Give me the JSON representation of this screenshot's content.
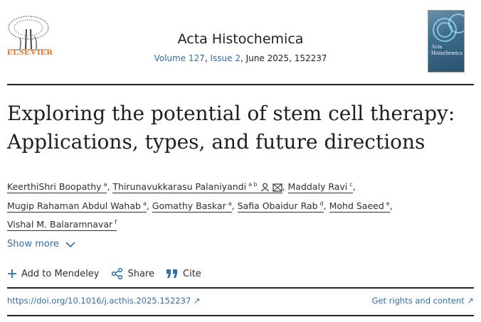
{
  "header": {
    "publisher_logo_text": "ELSEVIER",
    "journal_title": "Acta Histochemica",
    "volume_label": "Volume 127",
    "issue_label": "Issue 2",
    "issue_rest": ", June 2025, 152237",
    "cover_text": "Acta Histochemica"
  },
  "article": {
    "title": "Exploring the potential of stem cell therapy: Applications, types, and future directions",
    "authors": [
      {
        "name": "KeerthiShri Boopathy",
        "aff": "a"
      },
      {
        "name": "Thirunavukkarasu Palaniyandi",
        "aff": "a b"
      },
      {
        "name": "Maddaly Ravi",
        "aff": "c"
      },
      {
        "name": "Mugip Rahaman Abdul Wahab",
        "aff": "a"
      },
      {
        "name": "Gomathy Baskar",
        "aff": "a"
      },
      {
        "name": "Safia Obaidur Rab",
        "aff": "d"
      },
      {
        "name": "Mohd Saeed",
        "aff": "e"
      },
      {
        "name": "Vishal M. Balaramnavar",
        "aff": "f"
      }
    ],
    "show_more": "Show more"
  },
  "actions": {
    "mendeley": "Add to Mendeley",
    "share": "Share",
    "cite": "Cite"
  },
  "links": {
    "doi": "https://doi.org/10.1016/j.acthis.2025.152237",
    "rights": "Get rights and content"
  },
  "colors": {
    "link": "#2e6ea6",
    "elsevier_orange": "#e9711c",
    "text": "#2e2e2e"
  }
}
